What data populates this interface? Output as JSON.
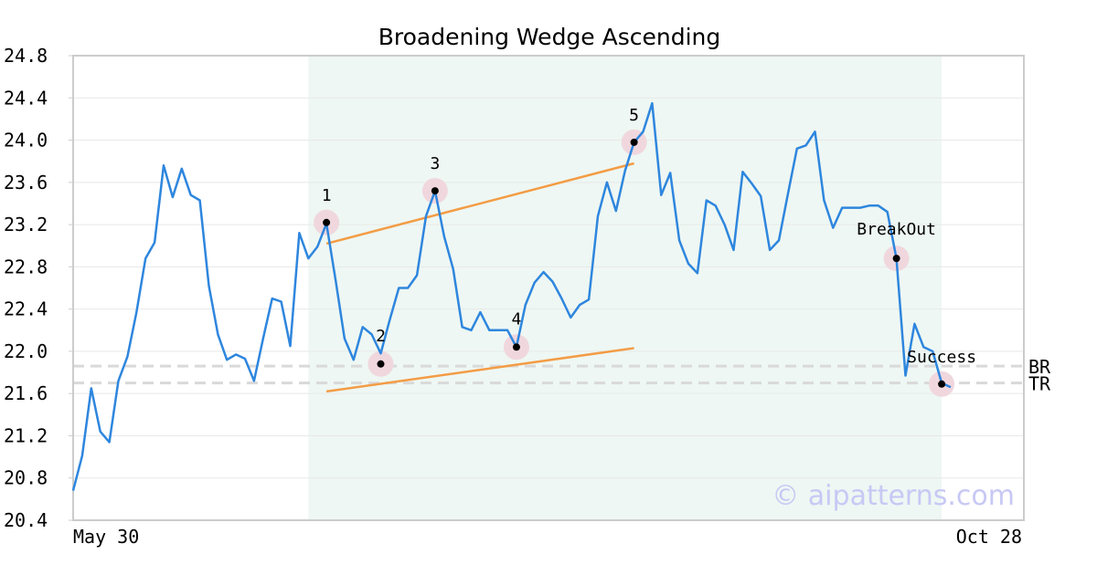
{
  "chart_data": {
    "type": "line",
    "title": "Broadening Wedge Ascending",
    "xlabel": "",
    "ylabel": "",
    "x_tick_labels": [
      "May 30",
      "Oct 28"
    ],
    "y_ticks": [
      "20.4",
      "20.8",
      "21.2",
      "21.6",
      "22.0",
      "22.4",
      "22.8",
      "23.2",
      "23.6",
      "24.0",
      "24.4",
      "24.8"
    ],
    "ylim": [
      20.4,
      24.8
    ],
    "grid": true,
    "pattern_window": {
      "start_index": 26,
      "end_index": 96
    },
    "series": [
      {
        "values": [
          20.68,
          21.01,
          21.65,
          21.24,
          21.14,
          21.72,
          21.95,
          22.37,
          22.88,
          23.03,
          23.76,
          23.46,
          23.73,
          23.48,
          23.43,
          22.62,
          22.16,
          21.92,
          21.97,
          21.93,
          21.72,
          22.12,
          22.5,
          22.47,
          22.05,
          23.12,
          22.88,
          22.99,
          23.21,
          22.68,
          22.12,
          21.92,
          22.23,
          22.16,
          21.98,
          22.3,
          22.6,
          22.6,
          22.72,
          23.28,
          23.52,
          23.09,
          22.78,
          22.23,
          22.2,
          22.37,
          22.2,
          22.2,
          22.2,
          22.04,
          22.44,
          22.65,
          22.75,
          22.66,
          22.5,
          22.32,
          22.44,
          22.49,
          23.28,
          23.6,
          23.33,
          23.71,
          23.98,
          24.08,
          24.35,
          23.48,
          23.69,
          23.05,
          22.83,
          22.74,
          23.43,
          23.38,
          23.2,
          22.96,
          23.7,
          23.59,
          23.47,
          22.96,
          23.05,
          23.49,
          23.92,
          23.95,
          24.08,
          23.43,
          23.17,
          23.36,
          23.36,
          23.36,
          23.38,
          23.38,
          23.32,
          22.88,
          21.77,
          22.26,
          22.04,
          22.0,
          21.7,
          21.66
        ]
      }
    ],
    "pattern_points": [
      {
        "label": "1",
        "index": 28,
        "value": 23.22
      },
      {
        "label": "2",
        "index": 34,
        "value": 21.88
      },
      {
        "label": "3",
        "index": 40,
        "value": 23.52
      },
      {
        "label": "4",
        "index": 49,
        "value": 22.04
      },
      {
        "label": "5",
        "index": 62,
        "value": 23.98
      },
      {
        "label": "BreakOut",
        "index": 91,
        "value": 22.88
      },
      {
        "label": "Success",
        "index": 96,
        "value": 21.69
      }
    ],
    "trend_lines": [
      {
        "from": {
          "index": 28,
          "value": 23.02
        },
        "to": {
          "index": 62,
          "value": 23.78
        }
      },
      {
        "from": {
          "index": 28,
          "value": 21.62
        },
        "to": {
          "index": 62,
          "value": 22.03
        }
      }
    ],
    "reference_lines": [
      {
        "label": "BR",
        "value": 21.86
      },
      {
        "label": "TR",
        "value": 21.7
      }
    ],
    "watermark": "© aipatterns.com",
    "colors": {
      "price_line": "#2e86de",
      "trend_line": "#f39c45",
      "pattern_window": "#eef7f3",
      "marker_halo": "#f0d7de",
      "reference_line": "#d9d9d9",
      "watermark": "#c8c8f5",
      "axis": "#cccccc",
      "grid": "#e8e8e8",
      "text": "#000000"
    }
  }
}
